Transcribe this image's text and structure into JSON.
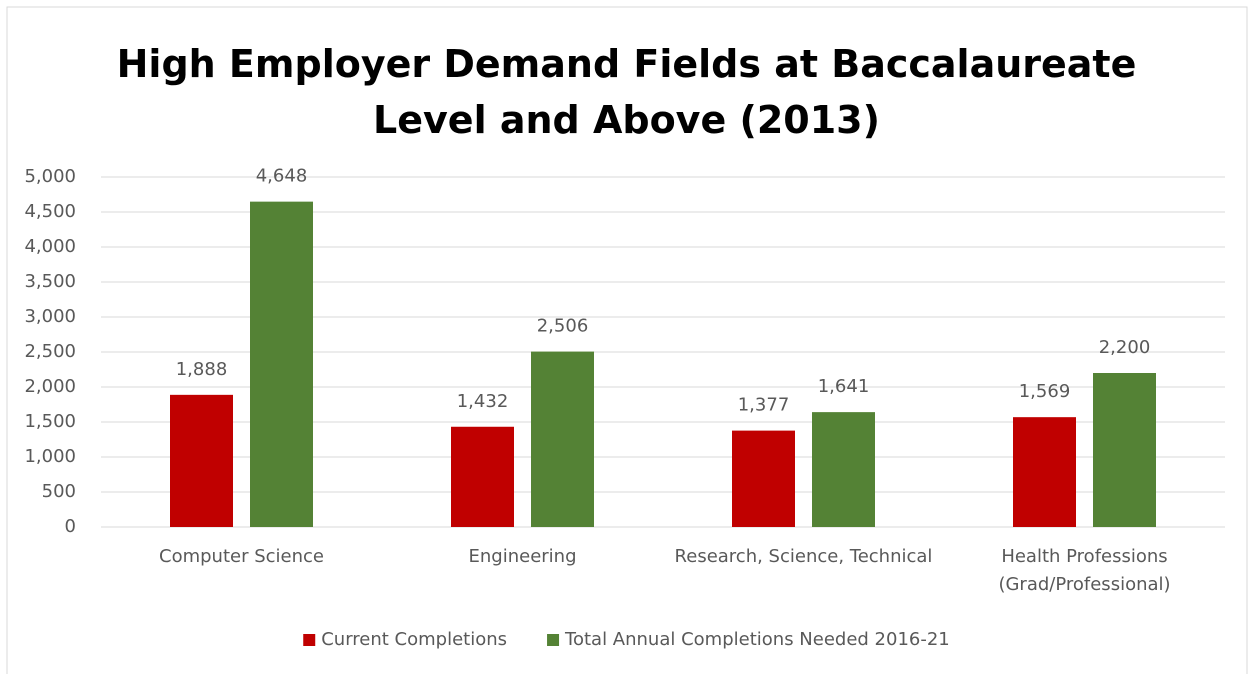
{
  "chart_data": {
    "type": "bar",
    "title": "High Employer Demand Fields at Baccalaureate Level and Above (2013)",
    "categories": [
      "Computer Science",
      "Engineering",
      "Research, Science, Technical",
      "Health Professions (Grad/Professional)"
    ],
    "series": [
      {
        "name": "Current Completions",
        "color": "#c00000",
        "values": [
          1888,
          1432,
          1377,
          1569
        ],
        "value_labels": [
          "1,888",
          "1,432",
          "1,377",
          "1,569"
        ]
      },
      {
        "name": "Total Annual Completions Needed 2016-21",
        "color": "#548235",
        "values": [
          4648,
          2506,
          1641,
          2200
        ],
        "value_labels": [
          "4,648",
          "2,506",
          "1,641",
          "2,200"
        ]
      }
    ],
    "ylim": [
      0,
      5000
    ],
    "yticks": [
      0,
      500,
      {
        "value": 1000,
        "label": "1,000"
      },
      {
        "value": 1500,
        "label": "1,500"
      },
      {
        "value": 2000,
        "label": "2,000"
      },
      {
        "value": 2500,
        "label": "2,500"
      },
      {
        "value": 3000,
        "label": "3,000"
      },
      {
        "value": 3500,
        "label": "3,500"
      },
      {
        "value": 4000,
        "label": "4,000"
      },
      {
        "value": 4500,
        "label": "4,500"
      },
      {
        "value": 5000,
        "label": "5,000"
      }
    ],
    "grid": true,
    "legend": "bottom"
  }
}
